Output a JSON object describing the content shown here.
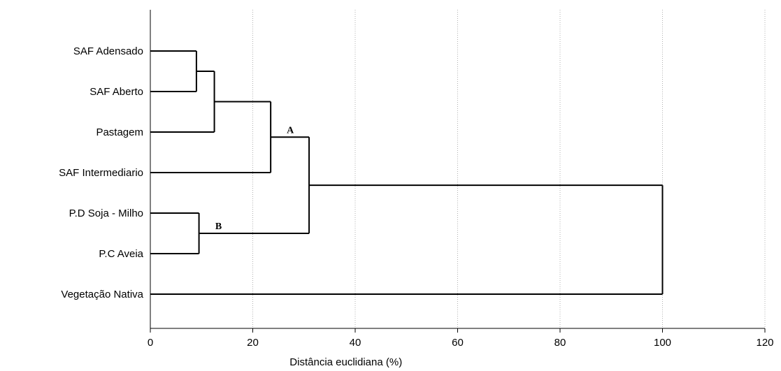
{
  "chart_data": {
    "type": "dendrogram",
    "xlabel": "Distância euclidiana (%)",
    "xlim": [
      0,
      120
    ],
    "xticks": [
      0,
      20,
      40,
      60,
      80,
      100,
      120
    ],
    "grid": "vertical dotted lines at major ticks",
    "leaves": [
      "SAF Adensado",
      "SAF Aberto",
      "Pastagem",
      "SAF Intermediario",
      "P.D Soja - Milho",
      "P.C Aveia",
      "Vegetação Nativa"
    ],
    "merges": [
      {
        "id": "m1",
        "left": "leaf:0",
        "right": "leaf:1",
        "height": 9
      },
      {
        "id": "m2",
        "left": "merge:m1",
        "right": "leaf:2",
        "height": 12.5
      },
      {
        "id": "m3",
        "left": "merge:m2",
        "right": "leaf:3",
        "height": 23.5
      },
      {
        "id": "m4",
        "left": "leaf:4",
        "right": "leaf:5",
        "height": 9.5
      },
      {
        "id": "m5",
        "left": "merge:m3",
        "right": "merge:m4",
        "height": 31
      },
      {
        "id": "m6",
        "left": "merge:m5",
        "right": "leaf:6",
        "height": 100
      }
    ],
    "annotations": [
      {
        "text": "A",
        "cluster": "m3"
      },
      {
        "text": "B",
        "cluster": "m4"
      }
    ]
  }
}
